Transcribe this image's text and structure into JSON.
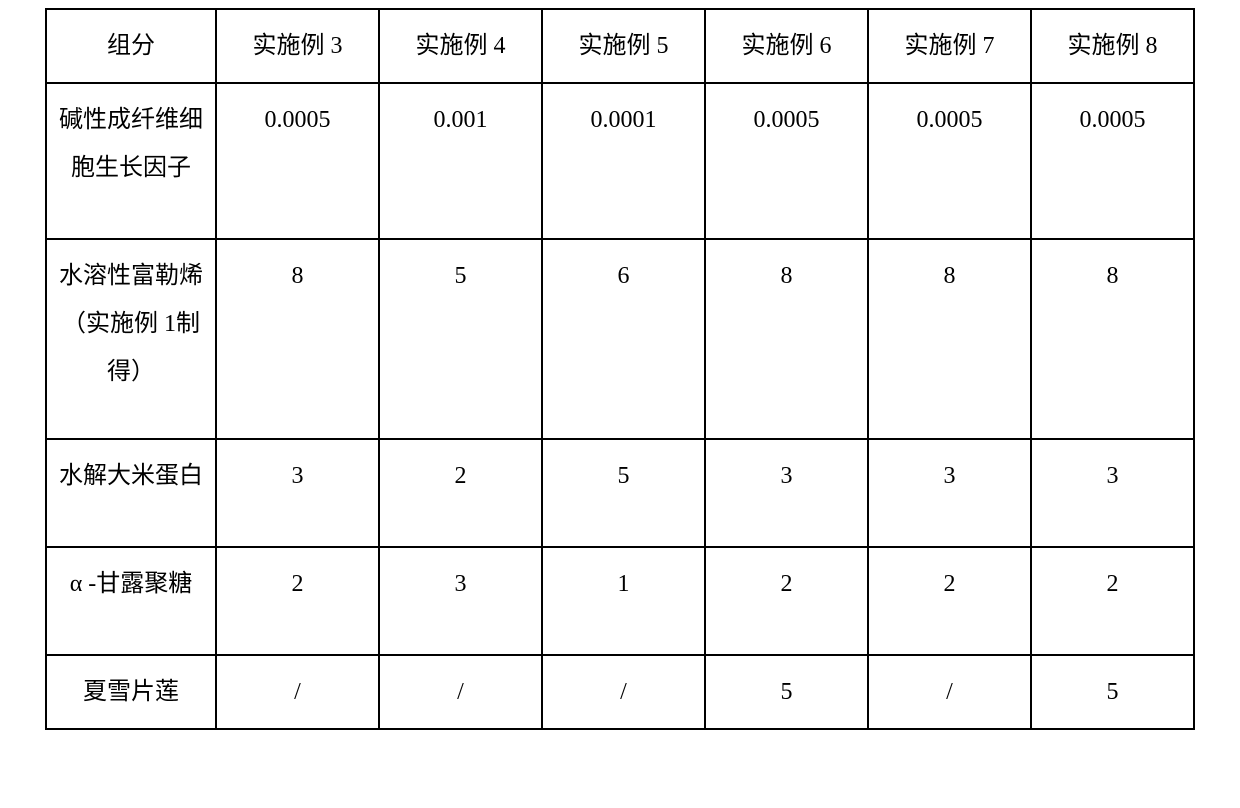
{
  "table": {
    "border_color": "#000000",
    "background_color": "#ffffff",
    "text_color": "#000000",
    "font_family": "SimSun",
    "font_size_pt": 18,
    "columns": [
      "组分",
      "实施例 3",
      "实施例 4",
      "实施例 5",
      "实施例 6",
      "实施例 7",
      "实施例 8"
    ],
    "rows": [
      {
        "component": "碱性成纤维细胞生长因子",
        "values": [
          "0.0005",
          "0.001",
          "0.0001",
          "0.0005",
          "0.0005",
          "0.0005"
        ]
      },
      {
        "component": "水溶性富勒烯（实施例 1制得）",
        "values": [
          "8",
          "5",
          "6",
          "8",
          "8",
          "8"
        ]
      },
      {
        "component": "水解大米蛋白",
        "values": [
          "3",
          "2",
          "5",
          "3",
          "3",
          "3"
        ]
      },
      {
        "component": "α -甘露聚糖",
        "values": [
          "2",
          "3",
          "1",
          "2",
          "2",
          "2"
        ]
      },
      {
        "component": "夏雪片莲",
        "values": [
          "/",
          "/",
          "/",
          "5",
          "/",
          "5"
        ]
      }
    ]
  }
}
